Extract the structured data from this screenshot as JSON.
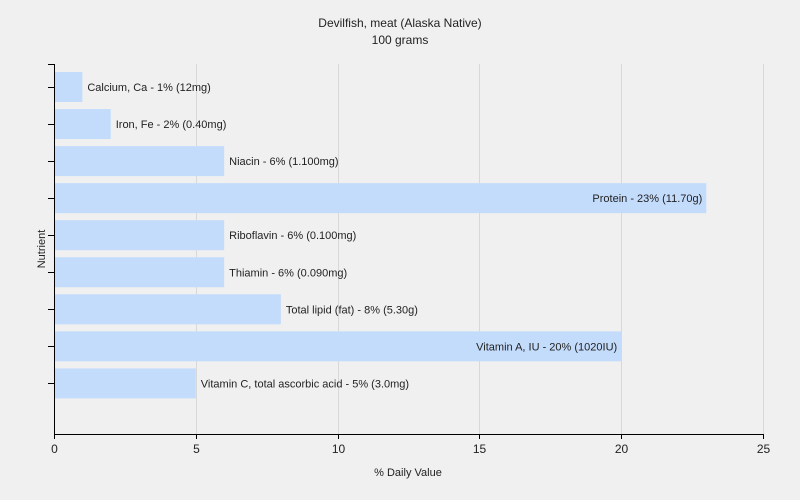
{
  "chart_data": {
    "type": "bar",
    "orientation": "horizontal",
    "title": "Devilfish, meat (Alaska Native)",
    "subtitle": "100 grams",
    "xlabel": "% Daily Value",
    "ylabel": "Nutrient",
    "xlim": [
      0,
      25
    ],
    "xticks": [
      0,
      5,
      10,
      15,
      20,
      25
    ],
    "grid": true,
    "bar_color": "#c4dcfc",
    "categories": [
      "Calcium, Ca",
      "Iron, Fe",
      "Niacin",
      "Protein",
      "Riboflavin",
      "Thiamin",
      "Total lipid (fat)",
      "Vitamin A, IU",
      "Vitamin C, total ascorbic acid"
    ],
    "values": [
      1,
      2,
      6,
      23,
      6,
      6,
      8,
      20,
      5
    ],
    "data_labels": [
      "Calcium, Ca - 1% (12mg)",
      "Iron, Fe - 2% (0.40mg)",
      "Niacin - 6% (1.100mg)",
      "Protein - 23% (11.70g)",
      "Riboflavin - 6% (0.100mg)",
      "Thiamin - 6% (0.090mg)",
      "Total lipid (fat) - 8% (5.30g)",
      "Vitamin A, IU - 20% (1020IU)",
      "Vitamin C, total ascorbic acid - 5% (3.0mg)"
    ]
  }
}
